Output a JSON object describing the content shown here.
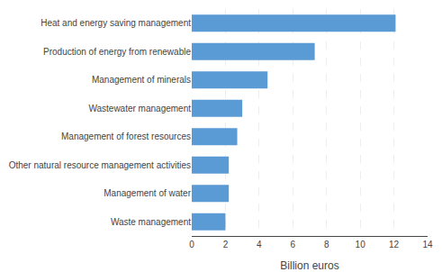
{
  "chart_data": {
    "type": "bar",
    "orientation": "horizontal",
    "categories": [
      "Waste management",
      "Management of water",
      "Other natural resource management activities",
      "Management of forest resources",
      "Wastewater management",
      "Management of minerals",
      "Production of energy from renewable",
      "Heat and energy saving management"
    ],
    "values": [
      2.0,
      2.2,
      2.2,
      2.7,
      3.0,
      4.5,
      7.3,
      12.1
    ],
    "color": "#5b9bd5",
    "xlabel": "Billion euros",
    "xlim": [
      0,
      14
    ],
    "xticks": [
      0,
      2,
      4,
      6,
      8,
      10,
      12,
      14
    ],
    "grid": true
  }
}
